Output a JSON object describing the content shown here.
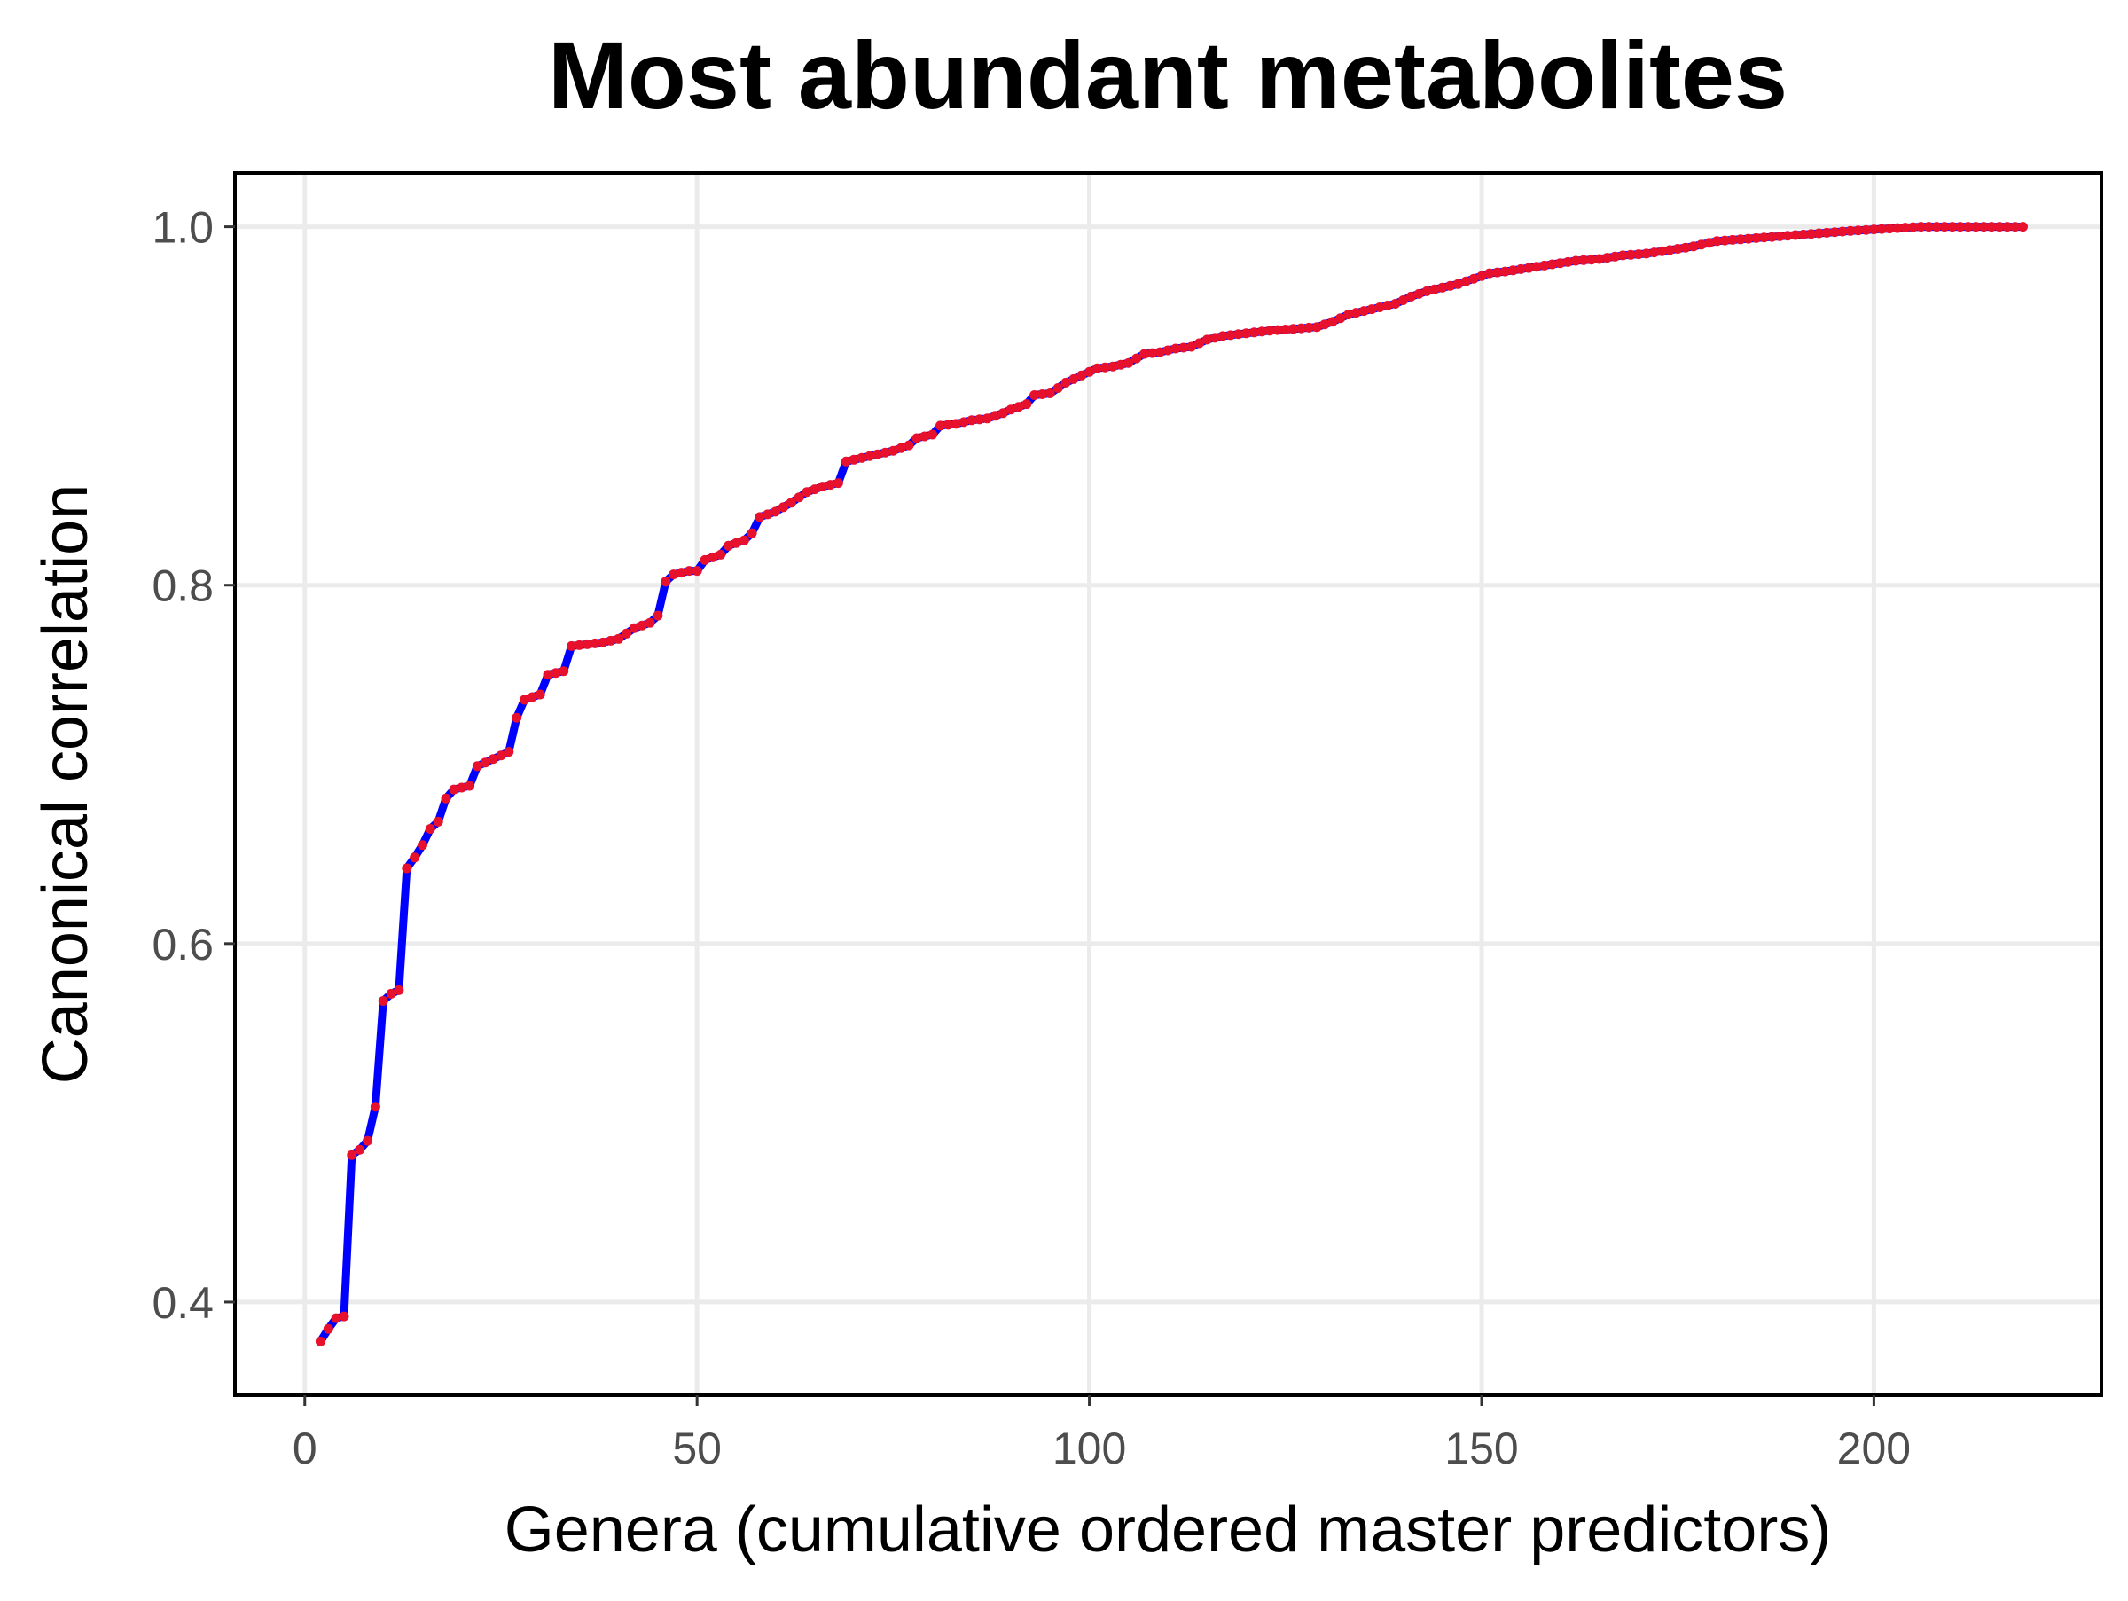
{
  "chart_data": {
    "type": "line",
    "title": "Most abundant metabolites",
    "xlabel": "Genera (cumulative ordered master predictors)",
    "ylabel": "Canonical correlation",
    "xlim": [
      -8.9,
      229
    ],
    "ylim": [
      0.348,
      1.03
    ],
    "xticks": [
      0,
      50,
      100,
      150,
      200
    ],
    "xtick_labels": [
      "0",
      "50",
      "100",
      "150",
      "200"
    ],
    "yticks": [
      0.4,
      0.6,
      0.8,
      1.0
    ],
    "ytick_labels": [
      "0.4",
      "0.6",
      "0.8",
      "1.0"
    ],
    "grid": true,
    "line_color": "#0000ff",
    "point_color": "#e8112d",
    "anchor_points": [
      [
        2,
        0.378
      ],
      [
        3,
        0.385
      ],
      [
        4,
        0.391
      ],
      [
        5,
        0.392
      ],
      [
        6,
        0.482
      ],
      [
        7,
        0.485
      ],
      [
        8,
        0.49
      ],
      [
        9,
        0.509
      ],
      [
        10,
        0.568
      ],
      [
        11,
        0.572
      ],
      [
        12,
        0.574
      ],
      [
        13,
        0.642
      ],
      [
        14,
        0.648
      ],
      [
        15,
        0.655
      ],
      [
        16,
        0.664
      ],
      [
        17,
        0.668
      ],
      [
        18,
        0.681
      ],
      [
        19,
        0.686
      ],
      [
        21,
        0.688
      ],
      [
        22,
        0.699
      ],
      [
        23,
        0.701
      ],
      [
        24,
        0.703
      ],
      [
        25,
        0.705
      ],
      [
        26,
        0.707
      ],
      [
        27,
        0.726
      ],
      [
        28,
        0.736
      ],
      [
        30,
        0.739
      ],
      [
        31,
        0.75
      ],
      [
        33,
        0.752
      ],
      [
        34,
        0.766
      ],
      [
        36,
        0.767
      ],
      [
        38,
        0.768
      ],
      [
        40,
        0.77
      ],
      [
        41,
        0.773
      ],
      [
        42,
        0.776
      ],
      [
        44,
        0.779
      ],
      [
        45,
        0.783
      ],
      [
        46,
        0.802
      ],
      [
        47,
        0.806
      ],
      [
        49,
        0.808
      ],
      [
        50,
        0.808
      ],
      [
        51,
        0.814
      ],
      [
        53,
        0.817
      ],
      [
        54,
        0.822
      ],
      [
        56,
        0.825
      ],
      [
        57,
        0.829
      ],
      [
        58,
        0.838
      ],
      [
        60,
        0.841
      ],
      [
        62,
        0.846
      ],
      [
        64,
        0.852
      ],
      [
        66,
        0.855
      ],
      [
        68,
        0.857
      ],
      [
        69,
        0.869
      ],
      [
        71,
        0.871
      ],
      [
        73,
        0.873
      ],
      [
        75,
        0.875
      ],
      [
        77,
        0.878
      ],
      [
        78,
        0.882
      ],
      [
        80,
        0.884
      ],
      [
        81,
        0.889
      ],
      [
        83,
        0.89
      ],
      [
        85,
        0.892
      ],
      [
        87,
        0.893
      ],
      [
        89,
        0.896
      ],
      [
        90,
        0.898
      ],
      [
        92,
        0.901
      ],
      [
        93,
        0.906
      ],
      [
        95,
        0.907
      ],
      [
        97,
        0.913
      ],
      [
        99,
        0.917
      ],
      [
        101,
        0.921
      ],
      [
        103,
        0.922
      ],
      [
        105,
        0.924
      ],
      [
        107,
        0.929
      ],
      [
        109,
        0.93
      ],
      [
        111,
        0.932
      ],
      [
        113,
        0.933
      ],
      [
        115,
        0.937
      ],
      [
        117,
        0.939
      ],
      [
        119,
        0.94
      ],
      [
        121,
        0.941
      ],
      [
        123,
        0.942
      ],
      [
        126,
        0.943
      ],
      [
        129,
        0.944
      ],
      [
        131,
        0.947
      ],
      [
        133,
        0.951
      ],
      [
        135,
        0.953
      ],
      [
        137,
        0.955
      ],
      [
        139,
        0.957
      ],
      [
        141,
        0.961
      ],
      [
        143,
        0.964
      ],
      [
        145,
        0.966
      ],
      [
        147,
        0.968
      ],
      [
        149,
        0.971
      ],
      [
        151,
        0.974
      ],
      [
        153,
        0.975
      ],
      [
        156,
        0.977
      ],
      [
        159,
        0.979
      ],
      [
        162,
        0.981
      ],
      [
        165,
        0.982
      ],
      [
        168,
        0.984
      ],
      [
        171,
        0.985
      ],
      [
        174,
        0.987
      ],
      [
        177,
        0.989
      ],
      [
        180,
        0.992
      ],
      [
        183,
        0.993
      ],
      [
        186,
        0.994
      ],
      [
        189,
        0.995
      ],
      [
        192,
        0.996
      ],
      [
        195,
        0.997
      ],
      [
        198,
        0.998
      ],
      [
        202,
        0.999
      ],
      [
        206,
        1.0
      ],
      [
        219,
        1.0
      ]
    ]
  }
}
